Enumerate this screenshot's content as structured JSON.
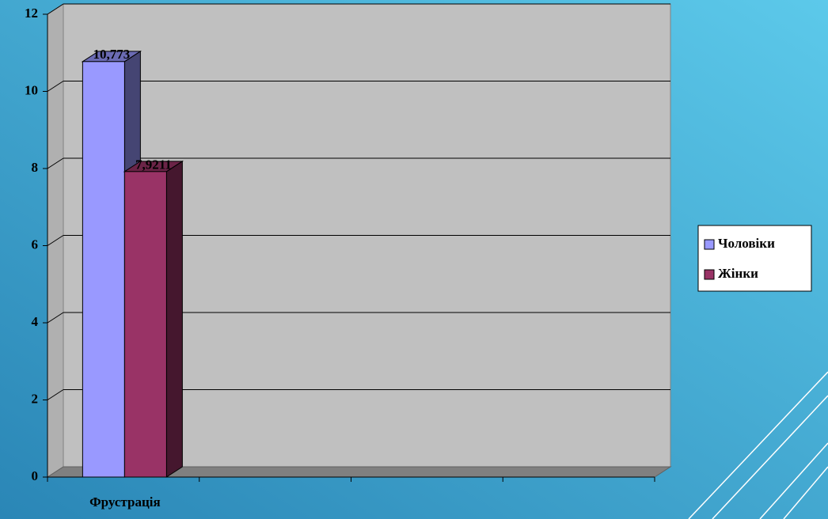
{
  "chart_data": {
    "type": "bar3d",
    "categories": [
      "Фрустрація",
      null,
      null,
      null
    ],
    "series": [
      {
        "name": "Чоловіки",
        "color": "#9999ff",
        "values": [
          10.773,
          null,
          null,
          null
        ],
        "value_labels": [
          "10,773",
          null,
          null,
          null
        ]
      },
      {
        "name": "Жінки",
        "color": "#993366",
        "values": [
          7.9211,
          null,
          null,
          null
        ],
        "value_labels": [
          "7,9211",
          null,
          null,
          null
        ]
      }
    ],
    "ylim": [
      0,
      12
    ],
    "yticks": [
      0,
      2,
      4,
      6,
      8,
      10,
      12
    ],
    "grid": true,
    "legend": "right"
  }
}
